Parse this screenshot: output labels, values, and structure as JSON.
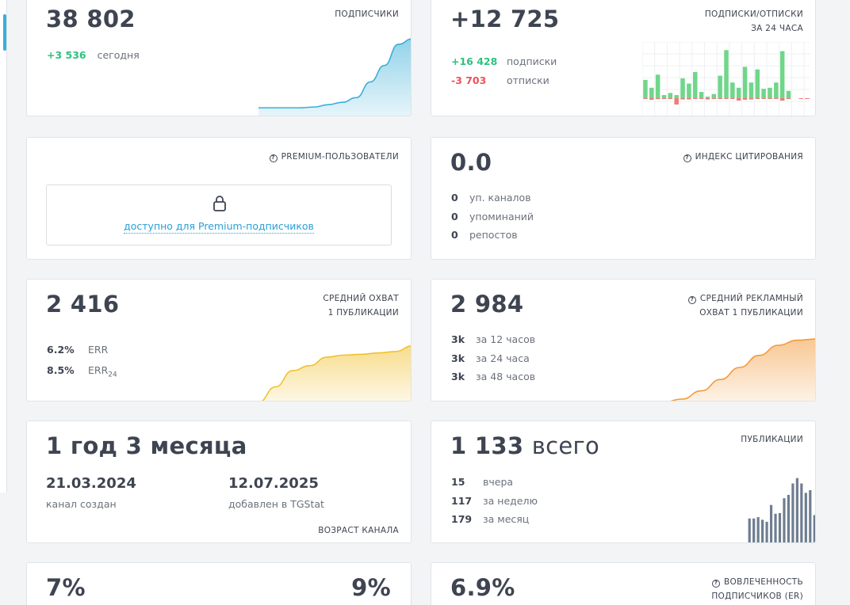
{
  "subscribers": {
    "value": "38 802",
    "label": "ПОДПИСЧИКИ",
    "today_delta": "+3 536",
    "today_label": "сегодня",
    "trend": [
      0.12,
      0.12,
      0.12,
      0.12,
      0.13,
      0.16,
      0.19,
      0.25,
      0.45,
      0.66,
      0.93,
      1.0
    ]
  },
  "subs_24h": {
    "value": "+12 725",
    "label_line1": "ПОДПИСКИ/ОТПИСКИ",
    "label_line2": "ЗА 24 ЧАСА",
    "subscribed": "+16 428",
    "subscribed_label": "подписки",
    "unsubscribed": "-3 703",
    "unsubscribed_label": "отписки",
    "bars_up": [
      0.35,
      0.2,
      0.45,
      0.06,
      0.1,
      0.06,
      0.38,
      0.28,
      0.5,
      0.12,
      0.03,
      0.08,
      0.43,
      0.92,
      0.3,
      0.2,
      0.6,
      0.3,
      0.55,
      0.18,
      0.2,
      0.3,
      0.9,
      0.14,
      0,
      0,
      0
    ],
    "bars_down": [
      0.05,
      0.1,
      0.06,
      0.05,
      0.05,
      0.4,
      0.08,
      0.08,
      0.05,
      0.05,
      0.08,
      0.05,
      0.05,
      0.05,
      0.05,
      0.15,
      0.1,
      0.08,
      0.05,
      0.05,
      0.05,
      0.05,
      0.15,
      0.03,
      0,
      0.02,
      0.02
    ]
  },
  "premium": {
    "label": "PREMIUM-ПОЛЬЗОВАТЕЛИ",
    "locked_text": "доступно для Premium-подписчиков"
  },
  "citation": {
    "value": "0.0",
    "label": "ИНДЕКС ЦИТИРОВАНИЯ",
    "rows": [
      {
        "num": "0",
        "text": "уп. каналов"
      },
      {
        "num": "0",
        "text": "упоминаний"
      },
      {
        "num": "0",
        "text": "репостов"
      }
    ]
  },
  "avg_reach": {
    "value": "2 416",
    "label_line1": "СРЕДНИЙ ОХВАТ",
    "label_line2": "1 ПУБЛИКАЦИИ",
    "err_value": "6.2%",
    "err_label": "ERR",
    "err24_value": "8.5%",
    "err24_label": "ERR",
    "err24_sub": "24",
    "trend": [
      0.0,
      0.22,
      0.45,
      0.52,
      0.64,
      0.67,
      0.68,
      0.7,
      0.72,
      0.8
    ]
  },
  "ad_reach": {
    "value": "2 984",
    "label_line1": "СРЕДНИЙ РЕКЛАМНЫЙ",
    "label_line2": "ОХВАТ 1 ПУБЛИКАЦИИ",
    "rows": [
      {
        "num": "3k",
        "text": "за 12 часов"
      },
      {
        "num": "3k",
        "text": "за 24 часа"
      },
      {
        "num": "3k",
        "text": "за 48 часов"
      }
    ],
    "trend": [
      0.0,
      0.05,
      0.18,
      0.36,
      0.55,
      0.74,
      0.9,
      0.98,
      1.0
    ]
  },
  "age": {
    "value": "1 год 3 месяца",
    "created_date": "21.03.2024",
    "created_label": "канал создан",
    "added_date": "12.07.2025",
    "added_label": "добавлен в TGStat",
    "label": "ВОЗРАСТ КАНАЛА"
  },
  "posts": {
    "value": "1 133",
    "value_suffix": "всего",
    "label": "ПУБЛИКАЦИИ",
    "rows": [
      {
        "num": "15",
        "text": "вчера"
      },
      {
        "num": "117",
        "text": "за неделю"
      },
      {
        "num": "179",
        "text": "за месяц"
      }
    ],
    "bars": [
      0.01,
      0.01,
      0.01,
      0.01,
      0.01,
      0.01,
      0.01,
      0.01,
      0.01,
      0.01,
      0.01,
      0.01,
      0.01,
      0.01,
      0.01,
      0.01,
      0.01,
      0.01,
      0.38,
      0.38,
      0.4,
      0.36,
      0.33,
      0.58,
      0.45,
      0.46,
      0.68,
      0.73,
      0.9,
      0.98,
      0.9,
      0.76,
      0.8,
      0.43
    ]
  },
  "bottom_left": {
    "left_value": "7%",
    "right_value": "9%"
  },
  "er": {
    "value": "6.9%",
    "label_line1": "ВОВЛЕЧЕННОСТЬ",
    "label_line2": "ПОДПИСЧИКОВ (ER)"
  },
  "colors": {
    "blue": "#3aaed8",
    "green": "#6fd68a",
    "red": "#f07a7a",
    "yellow": "#f2c12e",
    "orange": "#f39a3b",
    "slate": "#6f7d91"
  }
}
